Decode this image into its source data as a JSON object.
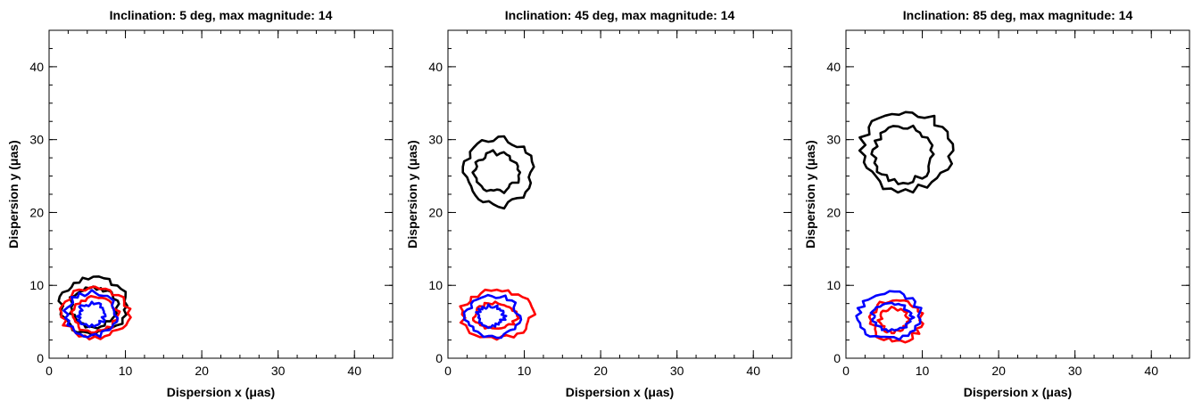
{
  "colors": {
    "black": "#000000",
    "red": "#ff0000",
    "blue": "#0000ff"
  },
  "chart_data": [
    {
      "type": "contour",
      "title": "Inclination: 5 deg, max magnitude: 14",
      "xlabel": "Dispersion x (μas)",
      "ylabel": "Dispersion y (μas)",
      "xlim": [
        0,
        45
      ],
      "ylim": [
        0,
        45
      ],
      "xticks": [
        0,
        10,
        20,
        30,
        40
      ],
      "yticks": [
        0,
        10,
        20,
        30,
        40
      ],
      "series": [
        {
          "color": "black",
          "contours": [
            {
              "center": [
                5.8,
                7.2
              ],
              "rx": 4.3,
              "ry": 3.8,
              "jitter": 0.45
            },
            {
              "center": [
                5.8,
                7.0
              ],
              "rx": 3.1,
              "ry": 2.7,
              "jitter": 0.4
            }
          ]
        },
        {
          "color": "red",
          "contours": [
            {
              "center": [
                6.0,
                6.2
              ],
              "rx": 4.3,
              "ry": 3.4,
              "jitter": 0.45
            },
            {
              "center": [
                6.0,
                6.0
              ],
              "rx": 3.0,
              "ry": 2.3,
              "jitter": 0.4
            }
          ]
        },
        {
          "color": "blue",
          "contours": [
            {
              "center": [
                5.6,
                6.0
              ],
              "rx": 3.3,
              "ry": 3.0,
              "jitter": 0.45
            },
            {
              "center": [
                5.6,
                6.0
              ],
              "rx": 1.7,
              "ry": 1.5,
              "jitter": 0.35
            }
          ]
        }
      ]
    },
    {
      "type": "contour",
      "title": "Inclination: 45 deg, max magnitude: 14",
      "xlabel": "Dispersion x (μas)",
      "ylabel": "Dispersion y (μas)",
      "xlim": [
        0,
        45
      ],
      "ylim": [
        0,
        45
      ],
      "xticks": [
        0,
        10,
        20,
        30,
        40
      ],
      "yticks": [
        0,
        10,
        20,
        30,
        40
      ],
      "series": [
        {
          "color": "black",
          "contours": [
            {
              "center": [
                6.6,
                25.5
              ],
              "rx": 4.4,
              "ry": 4.6,
              "jitter": 0.5
            },
            {
              "center": [
                6.4,
                25.5
              ],
              "rx": 2.8,
              "ry": 2.7,
              "jitter": 0.4
            }
          ]
        },
        {
          "color": "red",
          "contours": [
            {
              "center": [
                6.4,
                6.0
              ],
              "rx": 4.6,
              "ry": 3.3,
              "jitter": 0.45
            },
            {
              "center": [
                6.2,
                5.8
              ],
              "rx": 2.8,
              "ry": 1.8,
              "jitter": 0.35
            }
          ]
        },
        {
          "color": "blue",
          "contours": [
            {
              "center": [
                5.8,
                5.8
              ],
              "rx": 3.4,
              "ry": 2.8,
              "jitter": 0.45
            },
            {
              "center": [
                5.6,
                5.8
              ],
              "rx": 1.7,
              "ry": 1.4,
              "jitter": 0.35
            }
          ]
        }
      ]
    },
    {
      "type": "contour",
      "title": "Inclination: 85 deg, max magnitude: 14",
      "xlabel": "Dispersion x (μas)",
      "ylabel": "Dispersion y (μas)",
      "xlim": [
        0,
        45
      ],
      "ylim": [
        0,
        45
      ],
      "xticks": [
        0,
        10,
        20,
        30,
        40
      ],
      "yticks": [
        0,
        10,
        20,
        30,
        40
      ],
      "series": [
        {
          "color": "black",
          "contours": [
            {
              "center": [
                7.8,
                28.5
              ],
              "rx": 5.9,
              "ry": 5.4,
              "jitter": 0.6
            },
            {
              "center": [
                7.5,
                28.0
              ],
              "rx": 3.9,
              "ry": 3.8,
              "jitter": 0.45
            }
          ]
        },
        {
          "color": "red",
          "contours": [
            {
              "center": [
                6.6,
                5.2
              ],
              "rx": 3.3,
              "ry": 2.8,
              "jitter": 0.45
            },
            {
              "center": [
                6.3,
                5.2
              ],
              "rx": 1.8,
              "ry": 1.6,
              "jitter": 0.35
            }
          ]
        },
        {
          "color": "blue",
          "contours": [
            {
              "center": [
                5.7,
                5.8
              ],
              "rx": 4.0,
              "ry": 3.2,
              "jitter": 0.45
            },
            {
              "center": [
                6.0,
                5.6
              ],
              "rx": 2.6,
              "ry": 1.8,
              "jitter": 0.35
            }
          ]
        }
      ]
    }
  ]
}
